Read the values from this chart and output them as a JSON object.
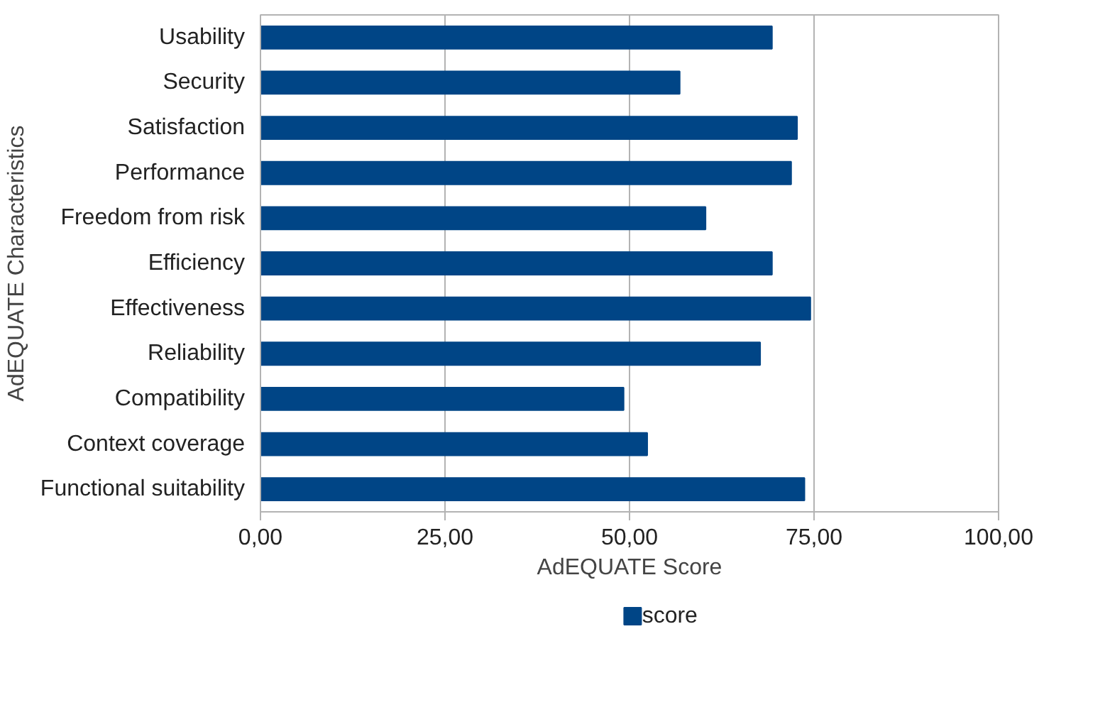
{
  "chart_data": {
    "type": "bar",
    "orientation": "horizontal",
    "xlabel": "AdEQUATE Score",
    "ylabel": "AdEQUATE Characteristics",
    "categories": [
      "Usability",
      "Security",
      "Satisfaction",
      "Performance",
      "Freedom from risk",
      "Efficiency",
      "Effectiveness",
      "Reliability",
      "Compatibility",
      "Context coverage",
      "Functional suitability"
    ],
    "series": [
      {
        "name": "score",
        "color": "#004586",
        "values": [
          69.3,
          56.8,
          72.7,
          71.9,
          60.3,
          69.3,
          74.5,
          67.7,
          49.2,
          52.4,
          73.7
        ]
      }
    ],
    "xlim": [
      0,
      100
    ],
    "xticks": [
      {
        "value": 0,
        "label": "0,00"
      },
      {
        "value": 25,
        "label": "25,00"
      },
      {
        "value": 50,
        "label": "50,00"
      },
      {
        "value": 75,
        "label": "75,00"
      },
      {
        "value": 100,
        "label": "100,00"
      }
    ],
    "grid": "x",
    "legend": "bottom"
  }
}
